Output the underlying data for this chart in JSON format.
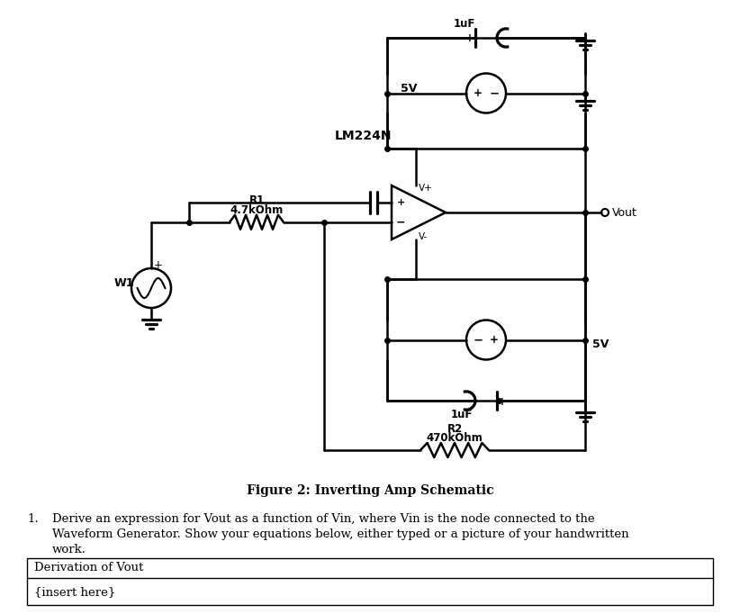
{
  "background_color": "#ffffff",
  "title": "Figure 2: Inverting Amp Schematic",
  "title_fontsize": 10,
  "line_color": "#000000",
  "line_width": 1.8,
  "figsize": [
    8.22,
    6.82
  ],
  "dpi": 100,
  "labels": {
    "W1": "W1",
    "R1": "R1",
    "R1_val": "4.7kOhm",
    "R2": "R2",
    "R2_val": "470kOhm",
    "C_top": "1uF",
    "C_bot": "1uF",
    "V_top": "5V",
    "V_bot": "5V",
    "LM224N": "LM224N",
    "Vout": "Vout",
    "Vplus": "V+",
    "Vminus": "V-"
  },
  "box_label": "Derivation of Vout",
  "box_content": "{insert here}",
  "q_line1": "Derive an expression for Vout as a function of Vin, where Vin is the node connected to the",
  "q_line2": "Waveform Generator. Show your equations below, either typed or a picture of your handwritten",
  "q_line3": "work."
}
